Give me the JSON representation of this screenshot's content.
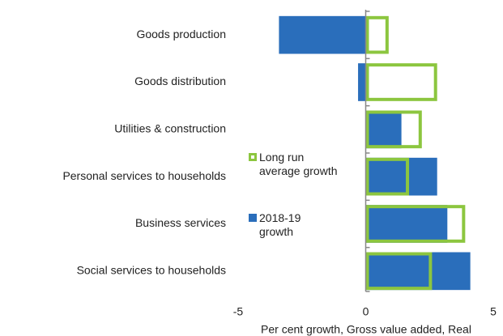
{
  "chart_data": {
    "type": "bar",
    "orientation": "horizontal",
    "x_label": "Per cent growth, Gross value added, Real",
    "categories": [
      "Goods production",
      "Goods distribution",
      "Utilities & construction",
      "Personal services to households",
      "Business services",
      "Social services to households"
    ],
    "series": [
      {
        "name": "2018-19 growth",
        "color": "#2a6ebb",
        "style": "filled",
        "values": [
          -3.4,
          -0.3,
          1.4,
          2.8,
          3.2,
          4.1
        ]
      },
      {
        "name": "Long run average growth",
        "color": "#8cc63f",
        "style": "outline",
        "values": [
          0.9,
          2.8,
          2.2,
          1.7,
          3.9,
          2.6
        ]
      }
    ],
    "xlim": [
      -5,
      5
    ],
    "xticks": [
      -5,
      0,
      5
    ],
    "grid": false
  }
}
